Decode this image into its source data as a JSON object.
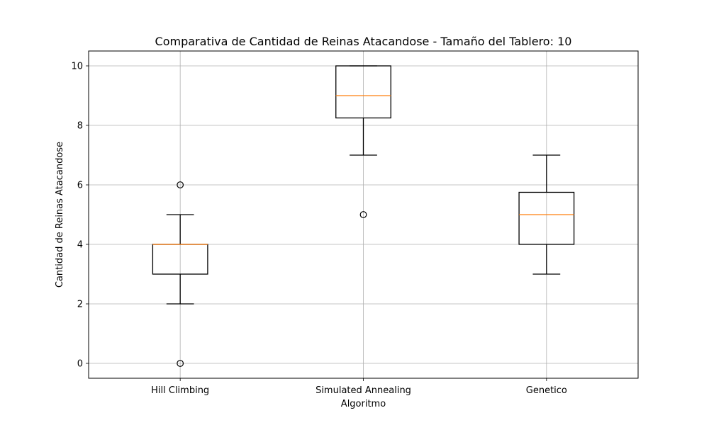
{
  "chart_data": {
    "type": "box",
    "title": "Comparativa de Cantidad de Reinas Atacandose - Tamaño del Tablero: 10",
    "xlabel": "Algoritmo",
    "ylabel": "Cantidad de Reinas Atacandose",
    "categories": [
      "Hill Climbing",
      "Simulated Annealing",
      "Genetico"
    ],
    "ylim": [
      -0.5,
      10.5
    ],
    "yticks": [
      0,
      2,
      4,
      6,
      8,
      10
    ],
    "grid": true,
    "boxes": [
      {
        "category": "Hill Climbing",
        "whisker_low": 2,
        "q1": 3,
        "median": 4,
        "q3": 4,
        "whisker_high": 5,
        "outliers": [
          0,
          6
        ]
      },
      {
        "category": "Simulated Annealing",
        "whisker_low": 7,
        "q1": 8.25,
        "median": 9,
        "q3": 10,
        "whisker_high": 10,
        "outliers": [
          5
        ]
      },
      {
        "category": "Genetico",
        "whisker_low": 3,
        "q1": 4,
        "median": 5,
        "q3": 5.75,
        "whisker_high": 7,
        "outliers": []
      }
    ],
    "colors": {
      "box": "#000000",
      "median": "#ff7f0e",
      "grid": "#b0b0b0"
    }
  }
}
